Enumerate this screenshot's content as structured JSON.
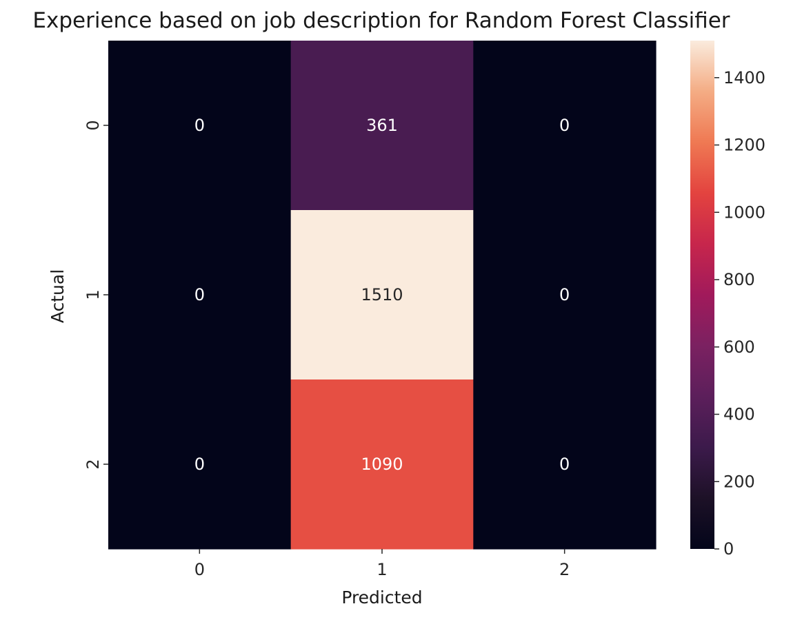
{
  "chart_data": {
    "type": "heatmap",
    "title": "Experience based on job description for Random Forest Classifier",
    "xlabel": "Predicted",
    "ylabel": "Actual",
    "x_categories": [
      "0",
      "1",
      "2"
    ],
    "y_categories": [
      "0",
      "1",
      "2"
    ],
    "values": [
      [
        0,
        361,
        0
      ],
      [
        0,
        1510,
        0
      ],
      [
        0,
        1090,
        0
      ]
    ],
    "colorbar": {
      "range": [
        0,
        1510
      ],
      "ticks": [
        0,
        200,
        400,
        600,
        800,
        1000,
        1200,
        1400
      ],
      "colormap": "rocket"
    },
    "grid": false,
    "legend": "colorbar-right"
  }
}
